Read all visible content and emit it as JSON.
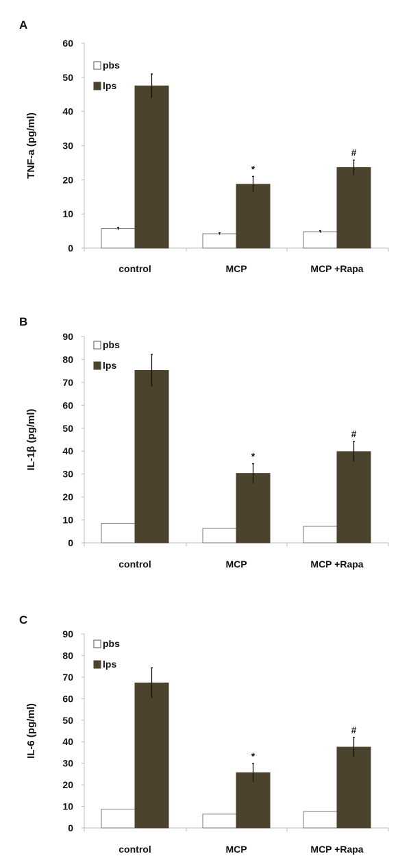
{
  "colors": {
    "pbs": "#ffffff",
    "lps": "#4b432d",
    "axis": "#bbbbbb",
    "text": "#111111"
  },
  "chart_data": [
    {
      "type": "bar",
      "panel": "A",
      "ylabel": "TNF-a (pg/ml)",
      "ylim": [
        0,
        60
      ],
      "yticks": [
        0,
        10,
        20,
        30,
        40,
        50,
        60
      ],
      "categories": [
        "control",
        "MCP",
        "MCP +Rapa"
      ],
      "legend": {
        "placement": "top-left"
      },
      "series": [
        {
          "name": "pbs",
          "values": [
            5.7,
            4.2,
            4.8
          ],
          "errors": [
            0.4,
            0.3,
            0.3
          ]
        },
        {
          "name": "lps",
          "values": [
            47.5,
            18.7,
            23.6
          ],
          "errors": [
            3.5,
            2.3,
            2.2
          ]
        }
      ],
      "annotations": [
        "",
        "*",
        "#"
      ]
    },
    {
      "type": "bar",
      "panel": "B",
      "ylabel": "IL-1β (pg/ml)",
      "ylim": [
        0,
        90
      ],
      "yticks": [
        0,
        10,
        20,
        30,
        40,
        50,
        60,
        70,
        80,
        90
      ],
      "categories": [
        "control",
        "MCP",
        "MCP +Rapa"
      ],
      "legend": {
        "placement": "top-left"
      },
      "series": [
        {
          "name": "pbs",
          "values": [
            8.5,
            6.3,
            7.2
          ],
          "errors": [
            0,
            0,
            0
          ]
        },
        {
          "name": "lps",
          "values": [
            75.2,
            30.3,
            39.8
          ],
          "errors": [
            7.0,
            4.2,
            4.4
          ]
        }
      ],
      "annotations": [
        "",
        "*",
        "#"
      ]
    },
    {
      "type": "bar",
      "panel": "C",
      "ylabel": "IL-6  (pg/ml)",
      "ylim": [
        0,
        90
      ],
      "yticks": [
        0,
        10,
        20,
        30,
        40,
        50,
        60,
        70,
        80,
        90
      ],
      "categories": [
        "control",
        "MCP",
        "MCP +Rapa"
      ],
      "legend": {
        "placement": "top-left"
      },
      "series": [
        {
          "name": "pbs",
          "values": [
            8.7,
            6.4,
            7.6
          ],
          "errors": [
            0,
            0,
            0
          ]
        },
        {
          "name": "lps",
          "values": [
            67.3,
            25.6,
            37.5
          ],
          "errors": [
            7.0,
            4.3,
            4.5
          ]
        }
      ],
      "annotations": [
        "",
        "*",
        "#"
      ]
    }
  ]
}
